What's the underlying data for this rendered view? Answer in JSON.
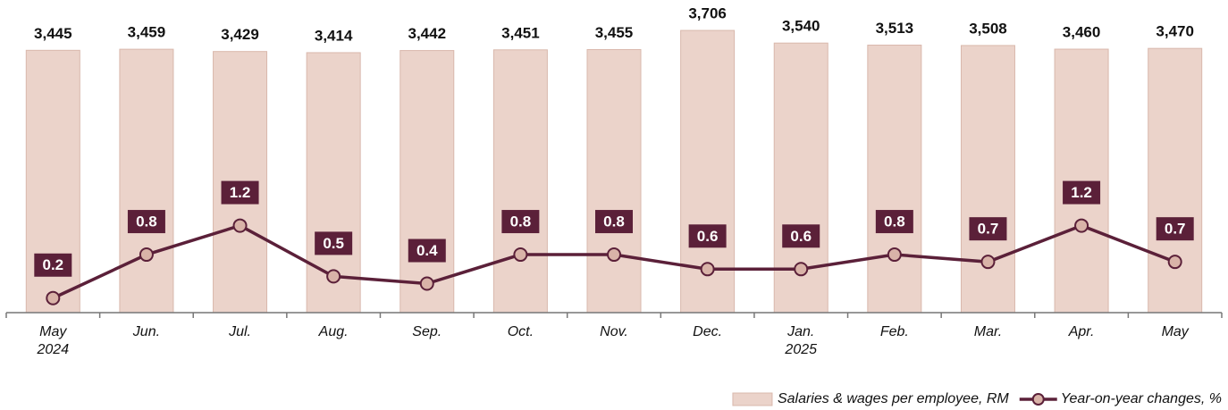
{
  "chart_data": {
    "type": "bar",
    "categories": [
      "May\n2024",
      "Jun.",
      "Jul.",
      "Aug.",
      "Sep.",
      "Oct.",
      "Nov.",
      "Dec.",
      "Jan.\n2025",
      "Feb.",
      "Mar.",
      "Apr.",
      "May"
    ],
    "series": [
      {
        "name": "Salaries & wages per employee, RM",
        "type": "bar",
        "color": "#ebd3ca",
        "values": [
          3445,
          3459,
          3429,
          3414,
          3442,
          3451,
          3455,
          3706,
          3540,
          3513,
          3508,
          3460,
          3470
        ],
        "value_labels": [
          "3,445",
          "3,459",
          "3,429",
          "3,414",
          "3,442",
          "3,451",
          "3,455",
          "3,706",
          "3,540",
          "3,513",
          "3,508",
          "3,460",
          "3,470"
        ]
      },
      {
        "name": "Year-on-year changes, %",
        "type": "line",
        "axis": "y2",
        "color": "#5b2039",
        "values": [
          0.2,
          0.8,
          1.2,
          0.5,
          0.4,
          0.8,
          0.8,
          0.6,
          0.6,
          0.8,
          0.7,
          1.2,
          0.7
        ]
      }
    ],
    "ylim": [
      0,
      4000
    ],
    "y2lim": [
      0,
      4.2
    ],
    "legend": "bottom-right"
  }
}
